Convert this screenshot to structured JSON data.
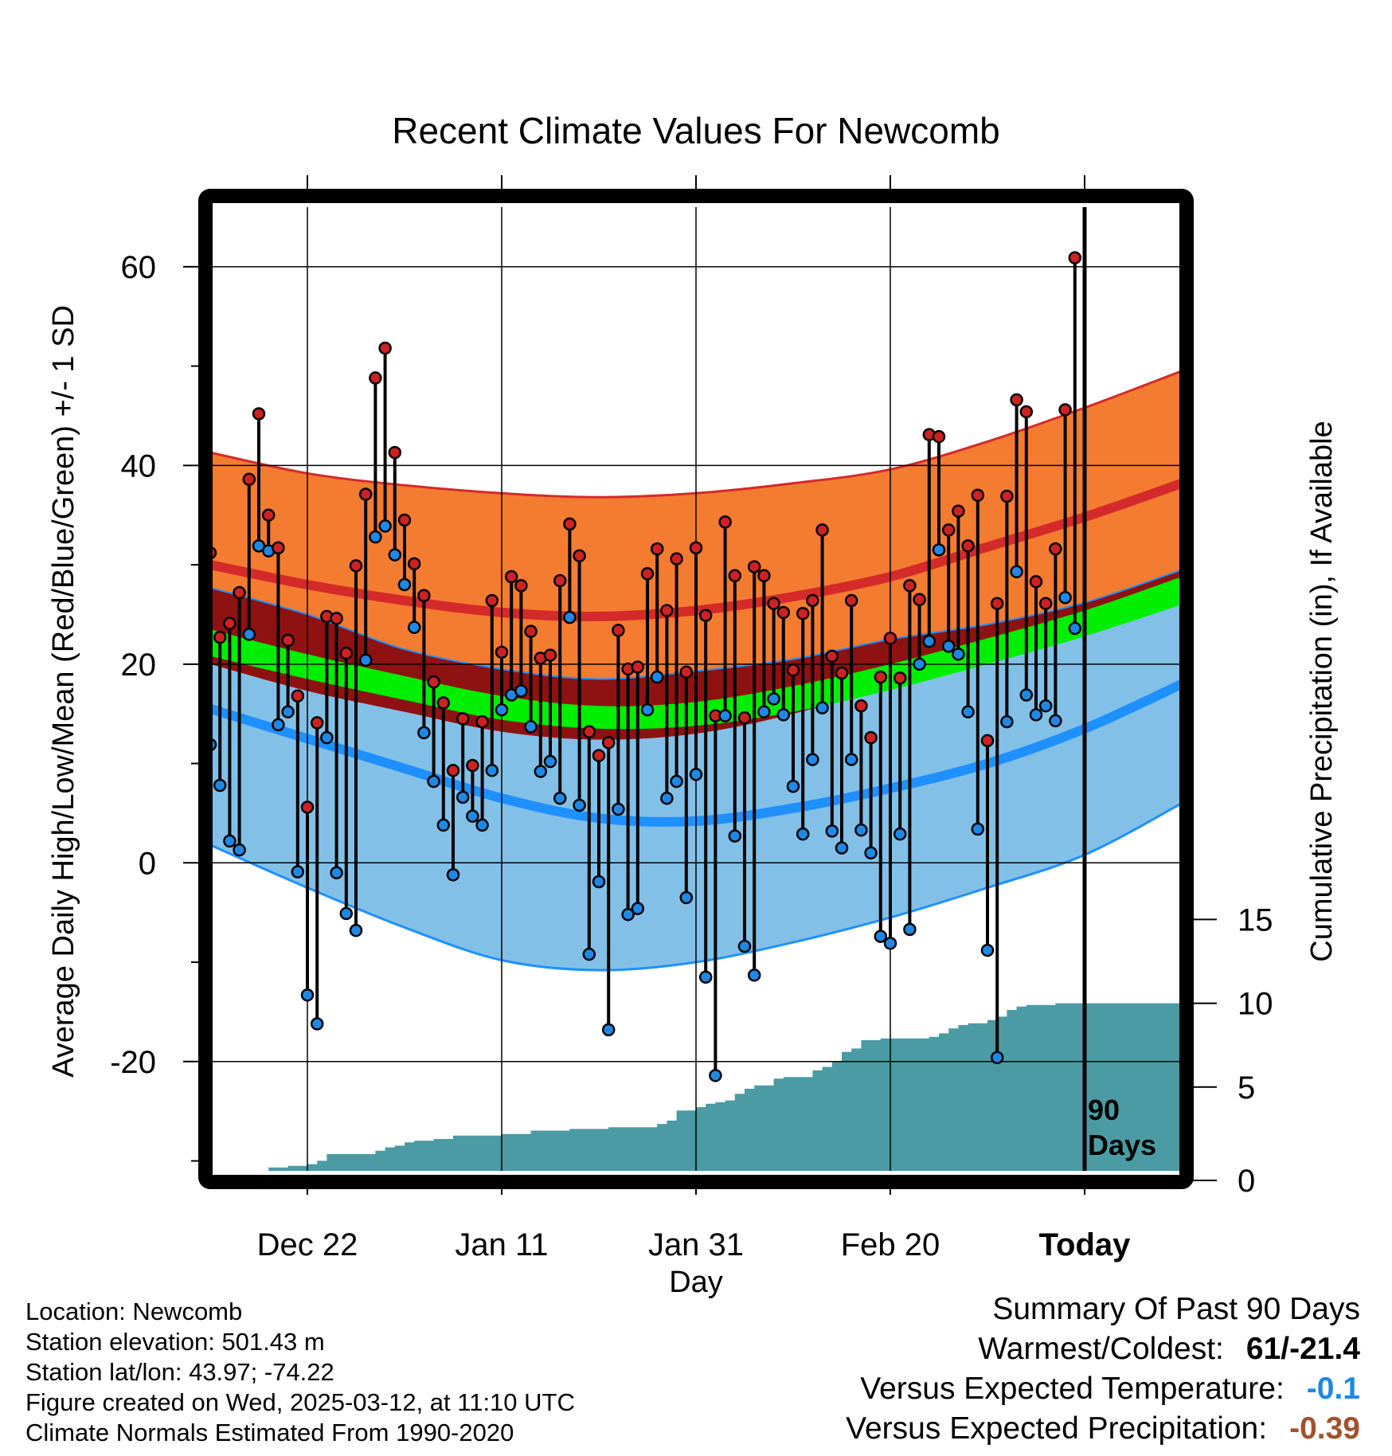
{
  "chart_data": {
    "type": "line",
    "title": "Recent Climate Values For Newcomb",
    "xlabel": "Day",
    "ylabel": "Average Daily High/Low/Mean (Red/Blue/Green) +/- 1 SD",
    "y2label": "Cumulative Precipitation (in), If Available",
    "x_range": [
      "2024-12-12",
      "2025-03-22"
    ],
    "x_ticks": [
      {
        "date": "2024-12-22",
        "label": "Dec 22"
      },
      {
        "date": "2025-01-11",
        "label": "Jan 11"
      },
      {
        "date": "2025-01-31",
        "label": "Jan 31"
      },
      {
        "date": "2025-02-20",
        "label": "Feb 20"
      },
      {
        "date": "2025-03-12",
        "label": "Today"
      }
    ],
    "ylim": [
      -31,
      66
    ],
    "y_ticks": [
      -20,
      0,
      20,
      40,
      60
    ],
    "y2lim": [
      0,
      57.5
    ],
    "y2_ticks": [
      0,
      5,
      10,
      15
    ],
    "grid": true,
    "today_marker": {
      "date": "2025-03-12",
      "label_line1": "90",
      "label_line2": "Days"
    },
    "colors": {
      "high_band": "#f47c30",
      "high_line": "#d42a2a",
      "overlap_band": "#8e1212",
      "mean_band": "#00ee00",
      "low_band": "#82c0e7",
      "low_line": "#1e90ff",
      "precip": "#4a9ba4",
      "high_marker": "#cc2222",
      "low_marker": "#1e88e5"
    },
    "normals": {
      "x": [
        "2024-12-12",
        "2024-12-22",
        "2025-01-01",
        "2025-01-11",
        "2025-01-21",
        "2025-01-31",
        "2025-02-10",
        "2025-02-20",
        "2025-03-02",
        "2025-03-12",
        "2025-03-22"
      ],
      "high_mean": [
        30.0,
        28.0,
        26.4,
        25.2,
        24.8,
        25.4,
        26.8,
        28.8,
        31.8,
        34.8,
        38.2
      ],
      "high_plus": [
        41.3,
        39.2,
        38.0,
        37.2,
        36.8,
        37.2,
        38.2,
        39.6,
        42.4,
        45.8,
        49.5
      ],
      "high_minus": [
        27.7,
        25.0,
        21.5,
        19.5,
        18.5,
        19.3,
        20.5,
        22.5,
        24.0,
        26.2,
        29.5
      ],
      "mean_plus": [
        23.5,
        21.0,
        18.8,
        16.8,
        15.8,
        16.2,
        17.8,
        20.0,
        22.6,
        25.4,
        28.8
      ],
      "mean_minus": [
        20.8,
        18.5,
        16.4,
        14.4,
        13.5,
        13.8,
        15.2,
        17.4,
        20.0,
        22.8,
        26.0
      ],
      "low_plus": [
        20.0,
        17.3,
        15.2,
        13.2,
        12.4,
        13.0,
        15.0,
        17.8,
        20.5,
        23.8,
        27.2
      ],
      "low_mean": [
        15.5,
        12.5,
        9.5,
        6.5,
        4.5,
        4.2,
        5.5,
        7.5,
        10.0,
        13.5,
        18.0
      ],
      "low_minus": [
        1.8,
        -2.5,
        -6.5,
        -9.8,
        -10.8,
        -10.0,
        -8.0,
        -5.5,
        -2.5,
        0.8,
        6.0
      ]
    },
    "series": [
      {
        "name": "High",
        "x": [
          "2024-12-12",
          "2024-12-13",
          "2024-12-14",
          "2024-12-15",
          "2024-12-16",
          "2024-12-17",
          "2024-12-18",
          "2024-12-19",
          "2024-12-20",
          "2024-12-21",
          "2024-12-22",
          "2024-12-23",
          "2024-12-24",
          "2024-12-25",
          "2024-12-26",
          "2024-12-27",
          "2024-12-28",
          "2024-12-29",
          "2024-12-30",
          "2024-12-31",
          "2025-01-01",
          "2025-01-02",
          "2025-01-03",
          "2025-01-04",
          "2025-01-05",
          "2025-01-06",
          "2025-01-07",
          "2025-01-08",
          "2025-01-09",
          "2025-01-10",
          "2025-01-11",
          "2025-01-12",
          "2025-01-13",
          "2025-01-14",
          "2025-01-15",
          "2025-01-16",
          "2025-01-17",
          "2025-01-18",
          "2025-01-19",
          "2025-01-20",
          "2025-01-21",
          "2025-01-22",
          "2025-01-23",
          "2025-01-24",
          "2025-01-25",
          "2025-01-26",
          "2025-01-27",
          "2025-01-28",
          "2025-01-29",
          "2025-01-30",
          "2025-01-31",
          "2025-02-01",
          "2025-02-02",
          "2025-02-03",
          "2025-02-04",
          "2025-02-05",
          "2025-02-06",
          "2025-02-07",
          "2025-02-08",
          "2025-02-09",
          "2025-02-10",
          "2025-02-11",
          "2025-02-12",
          "2025-02-13",
          "2025-02-14",
          "2025-02-15",
          "2025-02-16",
          "2025-02-17",
          "2025-02-18",
          "2025-02-19",
          "2025-02-20",
          "2025-02-21",
          "2025-02-22",
          "2025-02-23",
          "2025-02-24",
          "2025-02-25",
          "2025-02-26",
          "2025-02-27",
          "2025-02-28",
          "2025-03-01",
          "2025-03-02",
          "2025-03-03",
          "2025-03-04",
          "2025-03-05",
          "2025-03-06",
          "2025-03-07",
          "2025-03-08",
          "2025-03-09",
          "2025-03-10",
          "2025-03-11"
        ],
        "values": [
          31.2,
          22.7,
          24.1,
          27.2,
          38.6,
          45.2,
          35.0,
          31.7,
          22.4,
          16.8,
          5.6,
          14.1,
          24.8,
          24.6,
          21.1,
          29.9,
          37.1,
          48.8,
          51.8,
          41.3,
          34.5,
          30.1,
          26.9,
          18.2,
          16.1,
          9.3,
          14.5,
          9.8,
          14.2,
          26.4,
          21.2,
          28.8,
          27.9,
          23.3,
          20.6,
          20.9,
          28.4,
          34.1,
          30.9,
          13.2,
          10.8,
          12.1,
          23.4,
          19.5,
          19.7,
          29.1,
          31.6,
          25.4,
          30.6,
          19.2,
          31.7,
          24.9,
          14.8,
          34.3,
          28.9,
          14.6,
          29.8,
          28.9,
          26.1,
          25.2,
          19.4,
          25.1,
          26.4,
          33.5,
          20.8,
          19.1,
          26.4,
          15.8,
          12.6,
          18.7,
          22.6,
          18.6,
          27.9,
          26.5,
          43.1,
          42.9,
          33.5,
          35.4,
          31.9,
          37.0,
          12.3,
          26.1,
          36.9,
          46.6,
          45.4,
          28.3,
          26.1,
          31.6,
          45.6,
          60.9
        ]
      },
      {
        "name": "Low",
        "x": [
          "2024-12-12",
          "2024-12-13",
          "2024-12-14",
          "2024-12-15",
          "2024-12-16",
          "2024-12-17",
          "2024-12-18",
          "2024-12-19",
          "2024-12-20",
          "2024-12-21",
          "2024-12-22",
          "2024-12-23",
          "2024-12-24",
          "2024-12-25",
          "2024-12-26",
          "2024-12-27",
          "2024-12-28",
          "2024-12-29",
          "2024-12-30",
          "2024-12-31",
          "2025-01-01",
          "2025-01-02",
          "2025-01-03",
          "2025-01-04",
          "2025-01-05",
          "2025-01-06",
          "2025-01-07",
          "2025-01-08",
          "2025-01-09",
          "2025-01-10",
          "2025-01-11",
          "2025-01-12",
          "2025-01-13",
          "2025-01-14",
          "2025-01-15",
          "2025-01-16",
          "2025-01-17",
          "2025-01-18",
          "2025-01-19",
          "2025-01-20",
          "2025-01-21",
          "2025-01-22",
          "2025-01-23",
          "2025-01-24",
          "2025-01-25",
          "2025-01-26",
          "2025-01-27",
          "2025-01-28",
          "2025-01-29",
          "2025-01-30",
          "2025-01-31",
          "2025-02-01",
          "2025-02-02",
          "2025-02-03",
          "2025-02-04",
          "2025-02-05",
          "2025-02-06",
          "2025-02-07",
          "2025-02-08",
          "2025-02-09",
          "2025-02-10",
          "2025-02-11",
          "2025-02-12",
          "2025-02-13",
          "2025-02-14",
          "2025-02-15",
          "2025-02-16",
          "2025-02-17",
          "2025-02-18",
          "2025-02-19",
          "2025-02-20",
          "2025-02-21",
          "2025-02-22",
          "2025-02-23",
          "2025-02-24",
          "2025-02-25",
          "2025-02-26",
          "2025-02-27",
          "2025-02-28",
          "2025-03-01",
          "2025-03-02",
          "2025-03-03",
          "2025-03-04",
          "2025-03-05",
          "2025-03-06",
          "2025-03-07",
          "2025-03-08",
          "2025-03-09",
          "2025-03-10",
          "2025-03-11"
        ],
        "values": [
          11.9,
          7.8,
          2.2,
          1.3,
          23.0,
          31.9,
          31.4,
          13.9,
          15.2,
          -0.9,
          -13.3,
          -16.2,
          12.6,
          -1.0,
          -5.1,
          -6.8,
          20.4,
          32.8,
          33.9,
          31.0,
          28.0,
          23.7,
          13.1,
          8.2,
          3.8,
          -1.2,
          6.6,
          4.7,
          3.8,
          9.3,
          15.4,
          16.9,
          17.3,
          13.7,
          9.2,
          10.2,
          6.5,
          24.7,
          5.8,
          -9.2,
          -1.9,
          -16.8,
          5.4,
          -5.2,
          -4.6,
          15.4,
          18.7,
          6.5,
          8.2,
          -3.5,
          8.9,
          -11.5,
          -21.4,
          14.8,
          2.7,
          -8.4,
          -11.3,
          15.2,
          16.5,
          14.9,
          7.7,
          2.9,
          10.4,
          15.6,
          3.2,
          1.5,
          10.4,
          3.3,
          1.0,
          -7.4,
          -8.1,
          2.9,
          -6.7,
          20.0,
          22.3,
          31.5,
          21.8,
          21.0,
          15.2,
          3.4,
          -8.8,
          -19.6,
          14.2,
          29.3,
          16.9,
          14.9,
          15.8,
          14.3,
          26.7,
          23.6
        ]
      }
    ],
    "precip": {
      "name": "Cumulative Precipitation",
      "x": [
        "2024-12-12",
        "2024-12-17",
        "2024-12-18",
        "2024-12-20",
        "2024-12-22",
        "2024-12-23",
        "2024-12-24",
        "2024-12-28",
        "2024-12-29",
        "2024-12-30",
        "2024-12-31",
        "2025-01-01",
        "2025-01-02",
        "2025-01-04",
        "2025-01-06",
        "2025-01-11",
        "2025-01-14",
        "2025-01-18",
        "2025-01-22",
        "2025-01-27",
        "2025-01-28",
        "2025-01-29",
        "2025-01-31",
        "2025-02-01",
        "2025-02-02",
        "2025-02-03",
        "2025-02-04",
        "2025-02-05",
        "2025-02-06",
        "2025-02-08",
        "2025-02-09",
        "2025-02-12",
        "2025-02-13",
        "2025-02-14",
        "2025-02-15",
        "2025-02-16",
        "2025-02-17",
        "2025-02-18",
        "2025-02-19",
        "2025-02-24",
        "2025-02-25",
        "2025-02-26",
        "2025-02-27",
        "2025-02-28",
        "2025-03-02",
        "2025-03-03",
        "2025-03-04",
        "2025-03-05",
        "2025-03-06",
        "2025-03-09",
        "2025-03-22"
      ],
      "values": [
        0,
        0,
        0.2,
        0.3,
        0.4,
        0.6,
        1.0,
        1.0,
        1.2,
        1.4,
        1.5,
        1.7,
        1.8,
        1.9,
        2.1,
        2.2,
        2.4,
        2.5,
        2.6,
        2.8,
        3.0,
        3.6,
        3.8,
        4.0,
        4.1,
        4.2,
        4.6,
        4.9,
        5.1,
        5.5,
        5.6,
        6.0,
        6.2,
        6.5,
        7.1,
        7.3,
        7.8,
        7.8,
        7.9,
        8.0,
        8.2,
        8.5,
        8.7,
        8.8,
        9.0,
        9.2,
        9.6,
        9.8,
        9.9,
        10.0,
        10.0
      ]
    }
  },
  "info": {
    "location": "Location: Newcomb",
    "elevation": "Station elevation: 501.43 m",
    "latlon": "Station lat/lon: 43.97; -74.22",
    "created": "Figure created on Wed, 2025-03-12, at 11:10 UTC",
    "normals": "Climate Normals Estimated From 1990-2020"
  },
  "summary": {
    "title": "Summary Of Past 90 Days",
    "warmest_coldest_label": "Warmest/Coldest:",
    "warmest_coldest_value": "61/-21.4",
    "temp_label": "Versus Expected Temperature:",
    "temp_value": "-0.1",
    "temp_color": "#1e88e5",
    "precip_label": "Versus Expected Precipitation:",
    "precip_value": "-0.39",
    "precip_color": "#a0522d"
  }
}
